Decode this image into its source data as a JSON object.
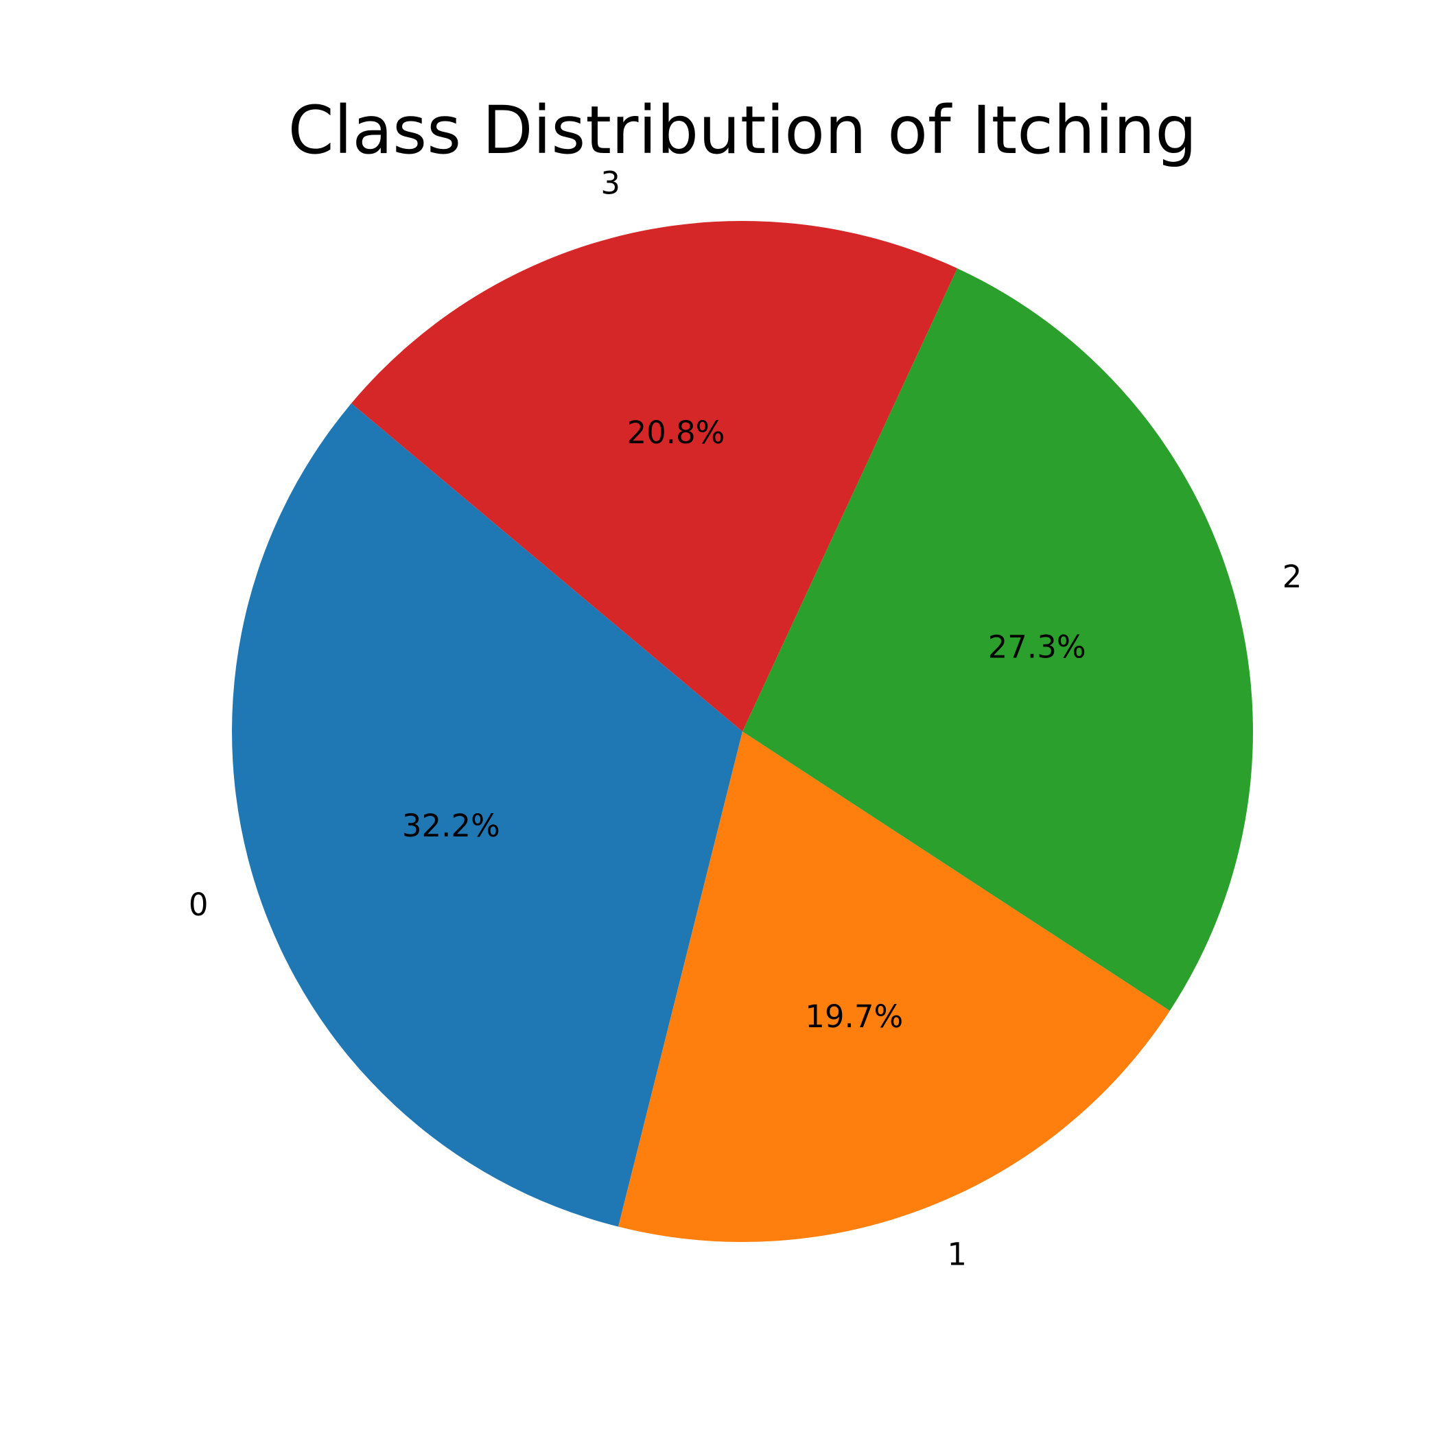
{
  "chart_data": {
    "type": "pie",
    "title": "Class Distribution of Itching",
    "categories": [
      "0",
      "1",
      "2",
      "3"
    ],
    "values": [
      32.2,
      19.7,
      27.3,
      20.8
    ],
    "percent_labels": [
      "32.2%",
      "19.7%",
      "27.3%",
      "20.8%"
    ],
    "colors": [
      "#1f77b4",
      "#ff7f0e",
      "#2ca02c",
      "#d62728"
    ],
    "start_angle_deg": 140,
    "direction": "counterclockwise",
    "legend": "none"
  }
}
